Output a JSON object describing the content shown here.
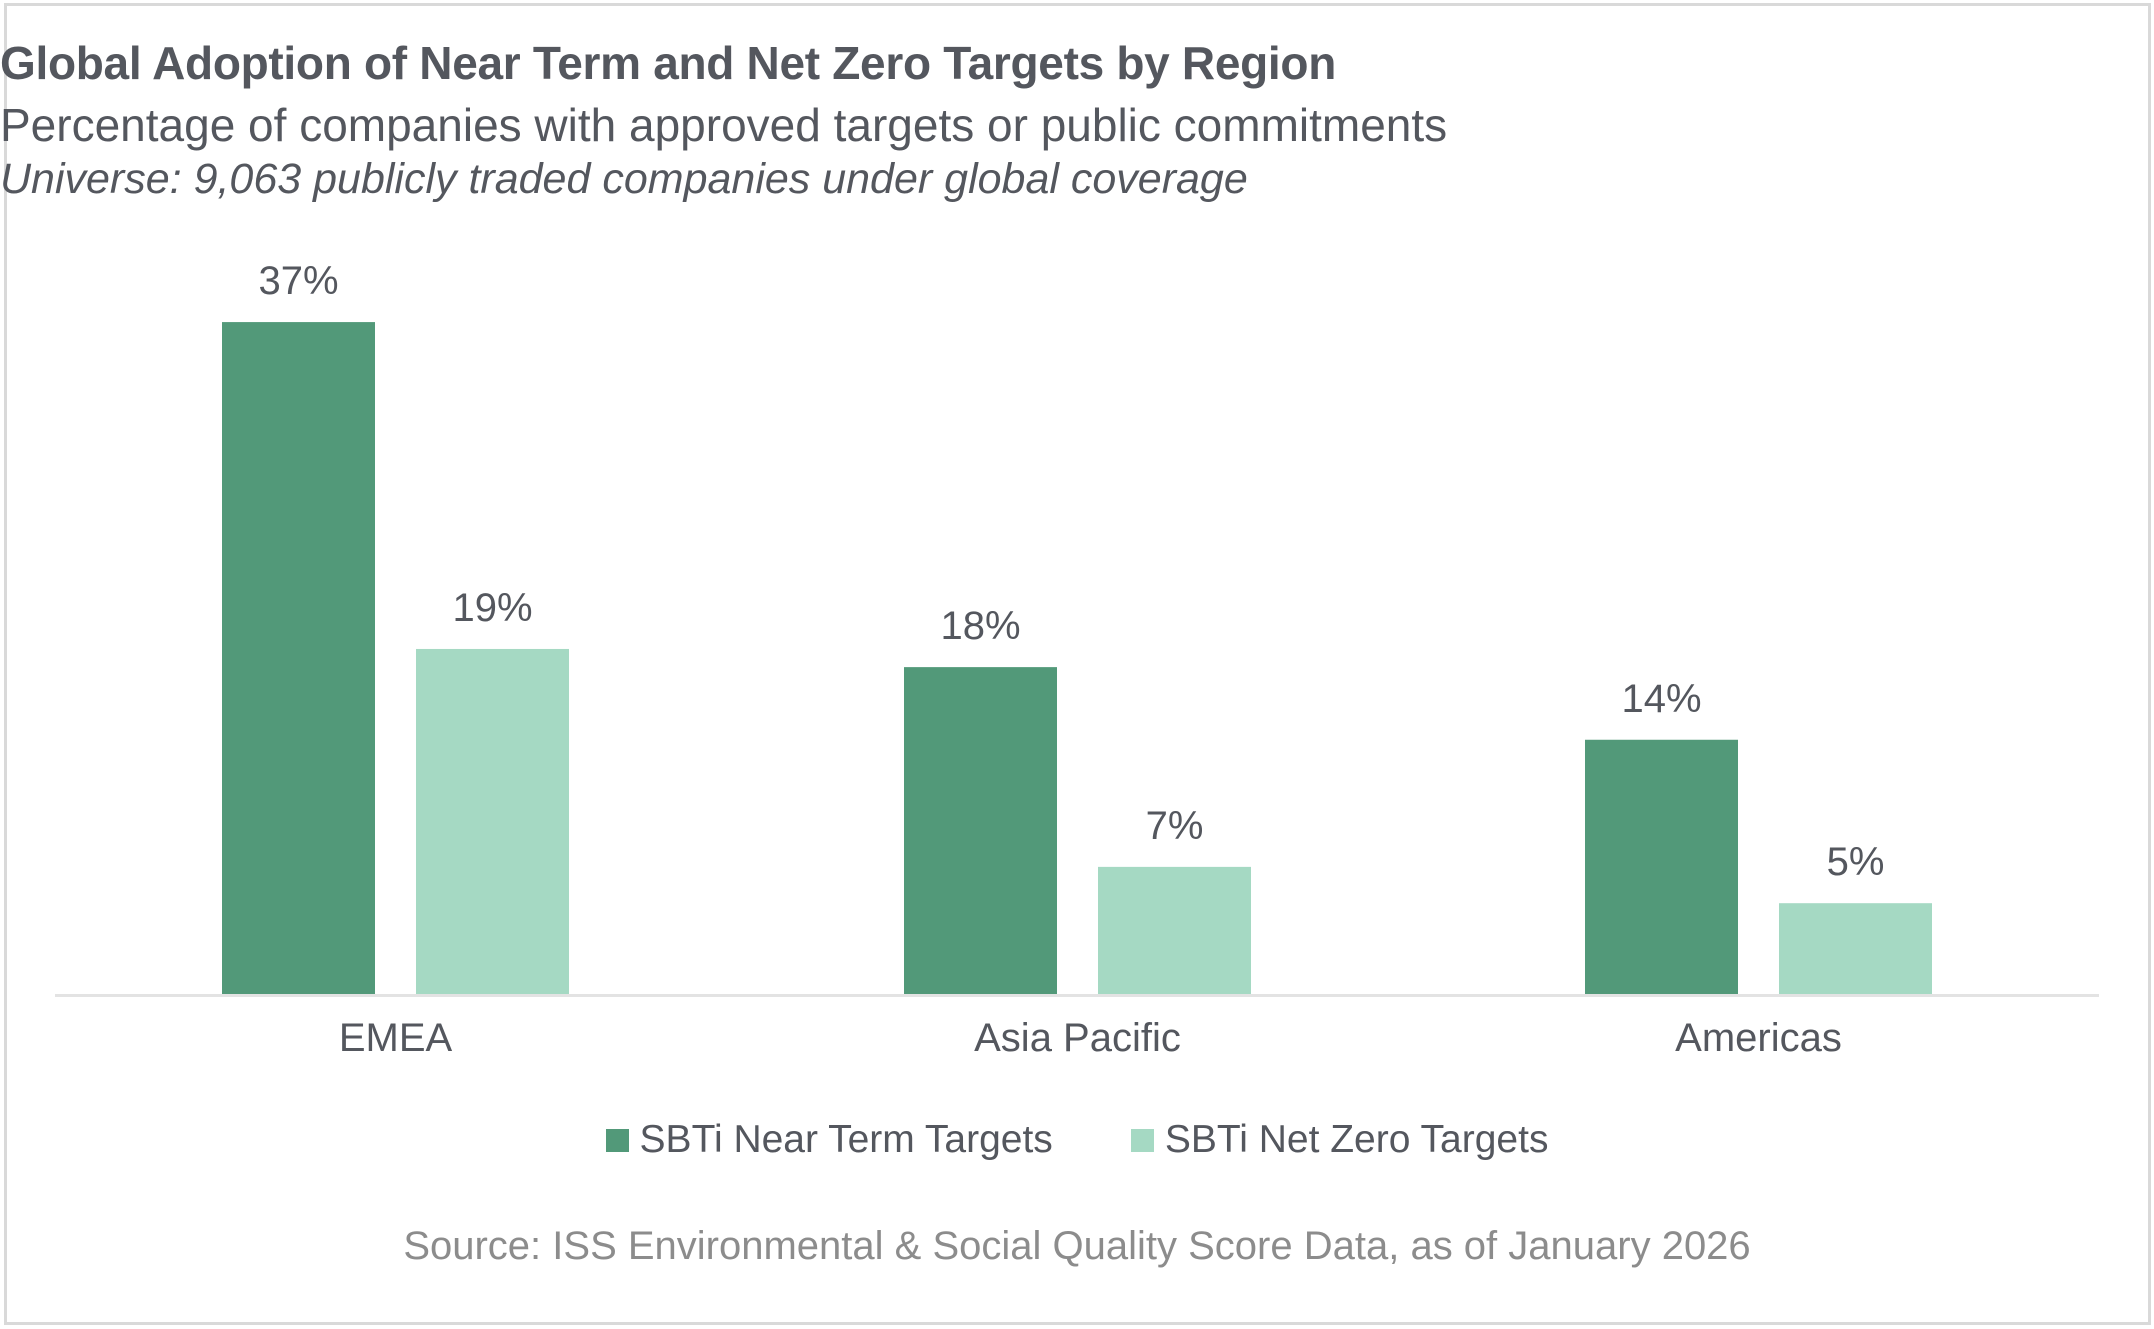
{
  "chart_data": {
    "type": "bar",
    "title": "Global Adoption of Near Term and Net Zero Targets by Region",
    "subtitle": "Percentage of companies with approved targets or public commitments",
    "note": "Universe: 9,063 publicly traded companies under global coverage",
    "categories": [
      "EMEA",
      "Asia Pacific",
      "Americas"
    ],
    "series": [
      {
        "name": "SBTi Near Term Targets",
        "values": [
          37,
          18,
          14
        ],
        "labels": [
          "37%",
          "18%",
          "14%"
        ],
        "color": "#529979"
      },
      {
        "name": "SBTi Net Zero Targets",
        "values": [
          19,
          7,
          5
        ],
        "labels": [
          "19%",
          "7%",
          "5%"
        ],
        "color": "#a5d9c3"
      }
    ],
    "xlabel": "",
    "ylabel": "",
    "ylim": [
      0,
      40
    ],
    "grid": false,
    "yaxis_visible": false,
    "legend_position": "bottom",
    "axis_color": "#e3e3e3",
    "source": "Source: ISS Environmental & Social Quality Score Data, as of January 2026"
  }
}
